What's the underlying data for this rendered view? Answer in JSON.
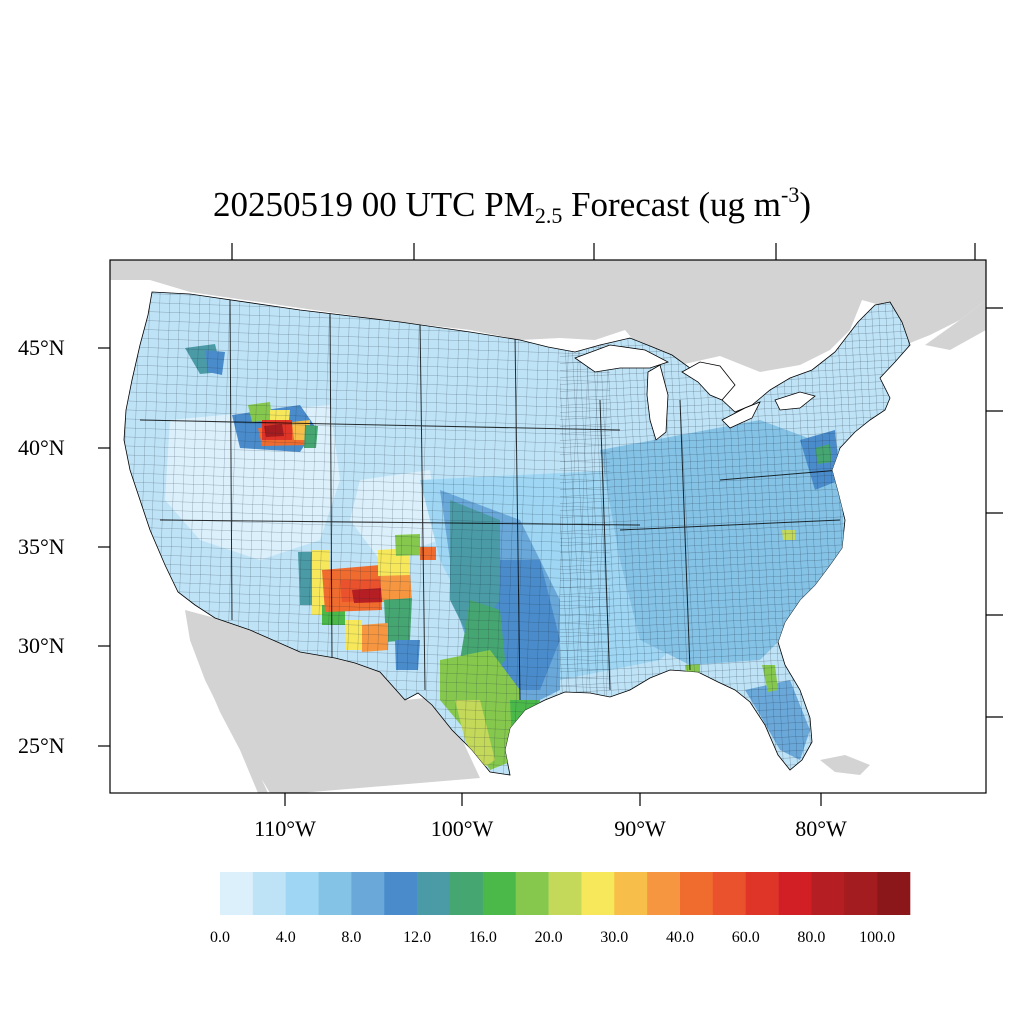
{
  "title": {
    "prefix": "20250519 00 UTC PM",
    "subscript": "2.5",
    "middle": " Forecast (ug m",
    "superscript": "-3",
    "suffix": ")"
  },
  "axes": {
    "lat_labels": [
      "45°N",
      "40°N",
      "35°N",
      "30°N",
      "25°N"
    ],
    "lon_labels": [
      "110°W",
      "100°W",
      "90°W",
      "80°W"
    ]
  },
  "colorbar": {
    "labels": [
      "0.0",
      "4.0",
      "8.0",
      "12.0",
      "16.0",
      "20.0",
      "30.0",
      "40.0",
      "60.0",
      "80.0",
      "100.0"
    ],
    "colors": [
      "#dbf0fb",
      "#bfe3f6",
      "#9ed6f3",
      "#84c2e6",
      "#6aa8da",
      "#4a8ccb",
      "#4a9ba6",
      "#46a671",
      "#4ab94a",
      "#86c84e",
      "#c4d85a",
      "#f6e85a",
      "#f7be4a",
      "#f69640",
      "#f06b2e",
      "#e9522c",
      "#de3528",
      "#d21f26",
      "#b51f24",
      "#a31c1f",
      "#8b171b"
    ]
  },
  "colors": {
    "land_outside": "#d3d3d3",
    "water": "#ffffff",
    "conus_base": "#bfe3f6",
    "county_lines": "#000000"
  }
}
